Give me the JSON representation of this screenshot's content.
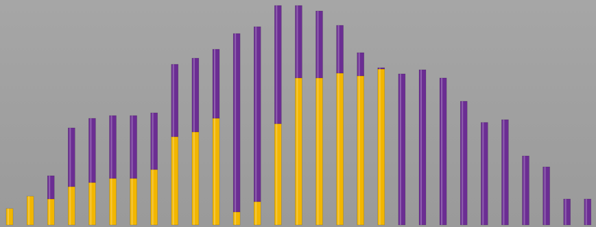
{
  "chart_data": {
    "type": "stacked-bar",
    "categories": [
      null,
      null,
      null,
      null,
      null,
      null,
      null,
      null,
      null,
      null,
      null,
      null,
      null,
      null,
      null,
      null,
      null,
      null,
      null,
      null,
      null,
      null,
      null,
      null,
      null,
      null,
      null,
      null,
      null
    ],
    "series": [
      {
        "color": "#f2b600",
        "values": [
          24,
          42,
          38,
          56,
          62,
          68,
          68,
          81,
          129,
          136,
          156,
          19,
          34,
          148,
          215,
          215,
          222,
          218,
          228,
          0,
          0,
          0,
          0,
          0,
          0,
          0,
          0,
          0,
          0
        ]
      },
      {
        "color": "#6b2d93",
        "values": [
          0,
          0,
          34,
          86,
          94,
          92,
          92,
          83,
          106,
          108,
          101,
          261,
          256,
          173,
          106,
          98,
          70,
          34,
          2,
          221,
          227,
          215,
          181,
          150,
          154,
          101,
          85,
          38,
          38
        ]
      }
    ],
    "ylim": [
      0,
      322
    ]
  }
}
